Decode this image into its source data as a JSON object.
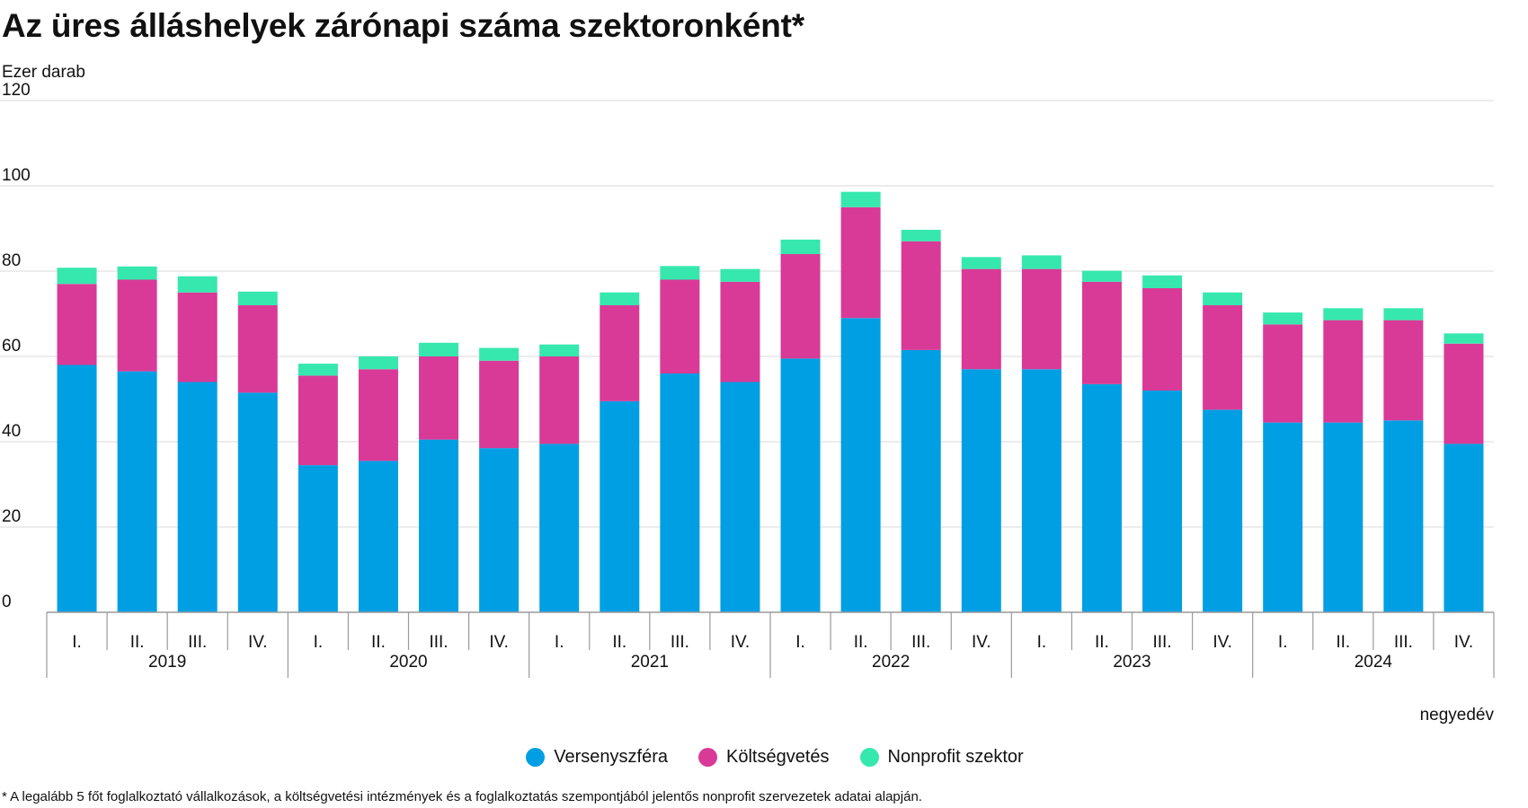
{
  "title": "Az üres álláshelyek zárónapi száma szektoronként*",
  "footnote": "* A legalább 5 főt foglalkoztató vállalkozások, a költségvetési intézmények és a foglalkoztatás szempontjából jelentős nonprofit szervezetek adatai alapján.",
  "colors": {
    "versenyszfera": "#009fe3",
    "koltsegvetes": "#d93a97",
    "nonprofit": "#36e8ae",
    "grid": "#d9d9d9",
    "axis": "#9a9a9a"
  },
  "legend": [
    {
      "label": "Versenyszféra",
      "color": "#009fe3"
    },
    {
      "label": "Költségvetés",
      "color": "#d93a97"
    },
    {
      "label": "Nonprofit szektor",
      "color": "#36e8ae"
    }
  ],
  "chart_data": {
    "type": "bar",
    "stacked": true,
    "title": "Az üres álláshelyek zárónapi száma szektoronként*",
    "ylabel": "Ezer darab",
    "xlabel": "negyedév",
    "ylim": [
      0,
      120
    ],
    "yticks": [
      0,
      20,
      40,
      60,
      80,
      100,
      120
    ],
    "grid": true,
    "legend_position": "bottom",
    "years": [
      "2019",
      "2020",
      "2021",
      "2022",
      "2023",
      "2024"
    ],
    "quarters": [
      "I.",
      "II.",
      "III.",
      "IV."
    ],
    "categories": [
      "2019 I.",
      "2019 II.",
      "2019 III.",
      "2019 IV.",
      "2020 I.",
      "2020 II.",
      "2020 III.",
      "2020 IV.",
      "2021 I.",
      "2021 II.",
      "2021 III.",
      "2021 IV.",
      "2022 I.",
      "2022 II.",
      "2022 III.",
      "2022 IV.",
      "2023 I.",
      "2023 II.",
      "2023 III.",
      "2023 IV.",
      "2024 I.",
      "2024 II.",
      "2024 III.",
      "2024 IV."
    ],
    "series": [
      {
        "name": "Versenyszféra",
        "values": [
          58.0,
          56.5,
          54.0,
          51.5,
          34.5,
          35.5,
          40.5,
          38.5,
          39.5,
          49.5,
          56.0,
          54.0,
          59.5,
          69.0,
          61.5,
          57.0,
          57.0,
          53.5,
          52.0,
          47.5,
          44.5,
          44.5,
          45.0,
          39.5
        ]
      },
      {
        "name": "Költségvetés",
        "values": [
          19.0,
          21.5,
          21.0,
          20.5,
          21.0,
          21.5,
          19.5,
          20.5,
          20.5,
          22.5,
          22.0,
          23.5,
          24.5,
          26.0,
          25.5,
          23.5,
          23.5,
          24.0,
          24.0,
          24.5,
          23.0,
          24.0,
          23.5,
          23.5
        ]
      },
      {
        "name": "Nonprofit szektor",
        "values": [
          3.8,
          3.1,
          3.8,
          3.2,
          2.8,
          3.0,
          3.2,
          3.0,
          2.8,
          3.0,
          3.2,
          3.0,
          3.4,
          3.6,
          2.7,
          2.8,
          3.2,
          2.6,
          3.0,
          3.0,
          2.8,
          2.8,
          2.8,
          2.4
        ]
      }
    ]
  }
}
